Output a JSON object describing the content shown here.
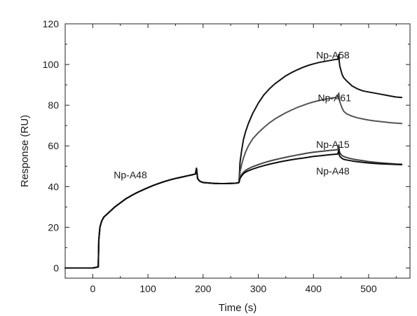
{
  "chart_data": {
    "type": "line",
    "title": "",
    "xlabel": "Time (s)",
    "ylabel": "Response (RU)",
    "xlim": [
      -50,
      575
    ],
    "ylim": [
      -5,
      120
    ],
    "xticks": [
      0,
      100,
      200,
      300,
      400,
      500
    ],
    "yticks": [
      0,
      20,
      40,
      60,
      80,
      100,
      120
    ],
    "grid": false,
    "legend": "none",
    "annotations": [
      {
        "text": "Np-A58",
        "x": 405,
        "y": 103
      },
      {
        "text": "Np-A61",
        "x": 408,
        "y": 82
      },
      {
        "text": "Np-A15",
        "x": 405,
        "y": 59
      },
      {
        "text": "Np-A48",
        "x": 405,
        "y": 46
      },
      {
        "text": "Np-A48",
        "x": 38,
        "y": 44
      }
    ],
    "series": [
      {
        "name": "Np-A58",
        "color": "#111111",
        "x": [
          -50,
          0,
          10,
          11,
          13,
          16,
          20,
          30,
          40,
          50,
          60,
          70,
          80,
          90,
          100,
          110,
          120,
          130,
          140,
          150,
          160,
          170,
          180,
          186,
          188,
          190,
          192,
          195,
          200,
          210,
          220,
          230,
          240,
          250,
          260,
          265,
          267,
          270,
          273,
          277,
          282,
          290,
          300,
          310,
          320,
          330,
          340,
          350,
          360,
          370,
          380,
          390,
          400,
          410,
          420,
          430,
          440,
          444,
          446,
          447,
          448,
          450,
          452,
          455,
          460,
          470,
          480,
          490,
          500,
          510,
          520,
          530,
          540,
          550,
          560
        ],
        "y": [
          0,
          0,
          0.5,
          14,
          20,
          23,
          25,
          27.5,
          30,
          32,
          34,
          35.6,
          37,
          38.3,
          39.5,
          40.6,
          41.6,
          42.5,
          43.3,
          44,
          44.6,
          45.2,
          45.8,
          46.2,
          49,
          44,
          43.2,
          42.5,
          42,
          41.8,
          41.6,
          41.5,
          41.5,
          41.6,
          41.7,
          42,
          52,
          58,
          63,
          67,
          71,
          76,
          81,
          85,
          88,
          90.5,
          92.5,
          94.5,
          96,
          97.3,
          98.5,
          99.5,
          100.3,
          101,
          101.5,
          102,
          102.5,
          102.5,
          105,
          101,
          99,
          97,
          95,
          93.5,
          92,
          89.5,
          88,
          87,
          86.5,
          86,
          85.5,
          85,
          84.5,
          84,
          83.8
        ]
      },
      {
        "name": "Np-A61",
        "color": "#555555",
        "x": [
          -50,
          0,
          10,
          11,
          13,
          16,
          20,
          30,
          40,
          50,
          60,
          70,
          80,
          90,
          100,
          110,
          120,
          130,
          140,
          150,
          160,
          170,
          180,
          186,
          188,
          190,
          192,
          195,
          200,
          210,
          220,
          230,
          240,
          250,
          260,
          265,
          267,
          270,
          273,
          277,
          282,
          290,
          300,
          310,
          320,
          330,
          340,
          350,
          360,
          370,
          380,
          390,
          400,
          410,
          420,
          430,
          440,
          444,
          446,
          447,
          448,
          450,
          452,
          455,
          460,
          470,
          480,
          490,
          500,
          510,
          520,
          530,
          540,
          550,
          560
        ],
        "y": [
          0,
          0,
          0.5,
          14,
          20,
          23,
          25,
          27.5,
          30,
          32,
          34,
          35.6,
          37,
          38.3,
          39.5,
          40.6,
          41.6,
          42.5,
          43.3,
          44,
          44.6,
          45.2,
          45.8,
          46.2,
          49,
          44,
          43.2,
          42.5,
          42,
          41.8,
          41.6,
          41.5,
          41.5,
          41.6,
          41.7,
          42,
          47,
          51,
          54,
          57,
          60,
          63.5,
          66.5,
          69,
          71.3,
          73.2,
          74.8,
          76.3,
          77.6,
          78.8,
          79.8,
          80.8,
          81.6,
          82.3,
          82.9,
          83.4,
          83.8,
          84,
          86,
          83,
          81.5,
          80,
          78.5,
          77,
          75.8,
          74.6,
          73.8,
          73.2,
          72.7,
          72.3,
          72,
          71.7,
          71.4,
          71.2,
          71
        ]
      },
      {
        "name": "Np-A15",
        "color": "#444444",
        "x": [
          -50,
          0,
          10,
          11,
          13,
          16,
          20,
          30,
          40,
          50,
          60,
          70,
          80,
          90,
          100,
          110,
          120,
          130,
          140,
          150,
          160,
          170,
          180,
          186,
          188,
          190,
          192,
          195,
          200,
          210,
          220,
          230,
          240,
          250,
          260,
          265,
          267,
          270,
          273,
          277,
          282,
          290,
          300,
          310,
          320,
          330,
          340,
          350,
          360,
          370,
          380,
          390,
          400,
          410,
          420,
          430,
          440,
          444,
          446,
          447,
          448,
          450,
          452,
          455,
          460,
          470,
          480,
          490,
          500,
          510,
          520,
          530,
          540,
          550,
          560
        ],
        "y": [
          0,
          0,
          0.5,
          14,
          20,
          23,
          25,
          27.5,
          30,
          32,
          34,
          35.6,
          37,
          38.3,
          39.5,
          40.6,
          41.6,
          42.5,
          43.3,
          44,
          44.6,
          45.2,
          45.8,
          46.2,
          49,
          44,
          43.2,
          42.5,
          42,
          41.8,
          41.6,
          41.5,
          41.5,
          41.6,
          41.7,
          42,
          44.5,
          46,
          47,
          48,
          48.8,
          49.8,
          50.8,
          51.7,
          52.5,
          53.2,
          53.8,
          54.4,
          55,
          55.5,
          56,
          56.5,
          56.9,
          57.2,
          57.5,
          57.8,
          58,
          58.2,
          60.5,
          57.5,
          56.5,
          55.8,
          55.2,
          54.8,
          54.3,
          53.6,
          53.1,
          52.7,
          52.3,
          52,
          51.7,
          51.5,
          51.3,
          51.1,
          51
        ]
      },
      {
        "name": "Np-A48",
        "color": "#0d0d0d",
        "x": [
          -50,
          0,
          10,
          11,
          13,
          16,
          20,
          30,
          40,
          50,
          60,
          70,
          80,
          90,
          100,
          110,
          120,
          130,
          140,
          150,
          160,
          170,
          180,
          186,
          188,
          190,
          192,
          195,
          200,
          210,
          220,
          230,
          240,
          250,
          260,
          265,
          267,
          270,
          273,
          277,
          282,
          290,
          300,
          310,
          320,
          330,
          340,
          350,
          360,
          370,
          380,
          390,
          400,
          410,
          420,
          430,
          440,
          444,
          446,
          447,
          448,
          450,
          452,
          455,
          460,
          470,
          480,
          490,
          500,
          510,
          520,
          530,
          540,
          550,
          560
        ],
        "y": [
          0,
          0,
          0.5,
          14,
          20,
          23,
          25,
          27.5,
          30,
          32,
          34,
          35.6,
          37,
          38.3,
          39.5,
          40.6,
          41.6,
          42.5,
          43.3,
          44,
          44.6,
          45.2,
          45.8,
          46.2,
          49,
          44,
          43.2,
          42.5,
          42,
          41.8,
          41.6,
          41.5,
          41.5,
          41.6,
          41.7,
          42,
          44,
          45.3,
          46.3,
          47.1,
          47.8,
          48.6,
          49.5,
          50.3,
          51,
          51.6,
          52.2,
          52.7,
          53.2,
          53.6,
          54,
          54.4,
          54.8,
          55.1,
          55.4,
          55.7,
          55.9,
          56,
          58,
          55.5,
          54.8,
          54.3,
          53.8,
          53.4,
          53.1,
          52.6,
          52.2,
          51.9,
          51.6,
          51.4,
          51.2,
          51.1,
          51,
          50.9,
          50.8
        ]
      }
    ]
  }
}
